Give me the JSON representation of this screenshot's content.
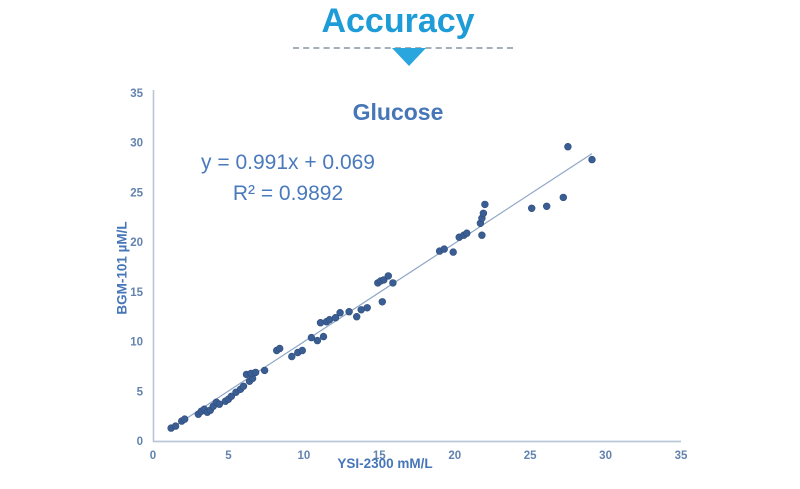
{
  "header": {
    "title": "Accuracy",
    "accent_color": "#1e9cd8"
  },
  "chart_data": {
    "type": "scatter",
    "title": "Glucose",
    "annotations": {
      "equation": "y = 0.991x + 0.069",
      "r_squared": "R² = 0.9892"
    },
    "xlabel": "YSI-2300 mM/L",
    "ylabel": "BGM-101 µM/L",
    "xlim": [
      0,
      35
    ],
    "ylim": [
      0,
      35
    ],
    "xticks": [
      0,
      5,
      10,
      15,
      20,
      25,
      30,
      35
    ],
    "yticks": [
      0,
      5,
      10,
      15,
      20,
      25,
      30,
      35
    ],
    "grid": false,
    "legend": "none",
    "trendline": {
      "slope": 0.991,
      "intercept": 0.069,
      "x_start": 1.2,
      "x_end": 29.1
    },
    "series": [
      {
        "name": "Glucose samples",
        "points": [
          [
            1.2,
            1.3
          ],
          [
            1.5,
            1.5
          ],
          [
            1.9,
            2.0
          ],
          [
            2.1,
            2.2
          ],
          [
            3.0,
            2.7
          ],
          [
            3.2,
            3.0
          ],
          [
            3.4,
            3.2
          ],
          [
            3.6,
            2.9
          ],
          [
            3.8,
            3.1
          ],
          [
            4.0,
            3.5
          ],
          [
            4.2,
            3.9
          ],
          [
            4.4,
            3.7
          ],
          [
            4.8,
            4.0
          ],
          [
            5.0,
            4.2
          ],
          [
            5.2,
            4.5
          ],
          [
            5.5,
            4.9
          ],
          [
            5.8,
            5.2
          ],
          [
            6.0,
            5.5
          ],
          [
            6.4,
            6.0
          ],
          [
            6.6,
            6.3
          ],
          [
            6.2,
            6.7
          ],
          [
            6.5,
            6.8
          ],
          [
            6.8,
            6.9
          ],
          [
            7.4,
            7.1
          ],
          [
            8.2,
            9.1
          ],
          [
            8.4,
            9.3
          ],
          [
            9.2,
            8.5
          ],
          [
            9.6,
            8.9
          ],
          [
            9.9,
            9.1
          ],
          [
            10.5,
            10.4
          ],
          [
            10.9,
            10.1
          ],
          [
            11.1,
            11.9
          ],
          [
            11.3,
            10.5
          ],
          [
            11.5,
            12.0
          ],
          [
            11.7,
            12.2
          ],
          [
            12.1,
            12.4
          ],
          [
            12.4,
            12.9
          ],
          [
            13.0,
            13.0
          ],
          [
            13.5,
            12.5
          ],
          [
            13.8,
            13.2
          ],
          [
            14.2,
            13.4
          ],
          [
            14.9,
            15.9
          ],
          [
            15.1,
            16.1
          ],
          [
            15.3,
            16.2
          ],
          [
            15.6,
            16.6
          ],
          [
            15.9,
            15.9
          ],
          [
            15.2,
            14.0
          ],
          [
            19.0,
            19.1
          ],
          [
            19.3,
            19.3
          ],
          [
            19.9,
            19.0
          ],
          [
            20.3,
            20.5
          ],
          [
            20.6,
            20.7
          ],
          [
            20.8,
            20.9
          ],
          [
            21.7,
            21.9
          ],
          [
            21.8,
            20.7
          ],
          [
            21.8,
            22.4
          ],
          [
            21.9,
            22.9
          ],
          [
            22.0,
            23.8
          ],
          [
            25.1,
            23.4
          ],
          [
            26.1,
            23.6
          ],
          [
            27.2,
            24.5
          ],
          [
            27.5,
            29.6
          ],
          [
            29.1,
            28.3
          ]
        ]
      }
    ],
    "colors": {
      "dot": "#3a5e94",
      "dot_edge": "#2f4d7c",
      "trend": "#8fa6c6",
      "axis": "#b9c7d8",
      "tick_text": "#6283ae",
      "label_text": "#4676b8"
    }
  }
}
